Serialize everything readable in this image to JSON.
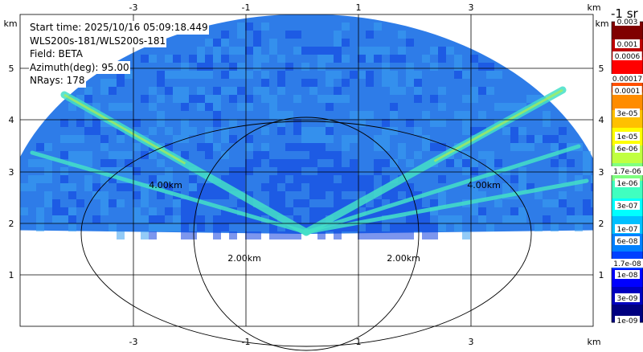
{
  "info": {
    "start_time": "Start time: 2025/10/16 05:09:18.449",
    "source": "WLS200s-181/WLS200s-181",
    "field": "Field: BETA",
    "azimuth": "Azimuth(deg): 95.00",
    "nrays": "NRays: 178"
  },
  "axes": {
    "unit": "km",
    "x_ticks": [
      "-3",
      "-1",
      "1",
      "3"
    ],
    "y_ticks": [
      "5",
      "4",
      "3",
      "2",
      "1"
    ],
    "range_labels": [
      "4.00km",
      "4.00km",
      "2.00km",
      "2.00km"
    ]
  },
  "colorbar": {
    "title": "-1 sr",
    "labels": [
      "0.003",
      "0.001",
      "0.0006",
      "0.00017",
      "0.0001",
      "3e-05",
      "1e-05",
      "6e-06",
      "1.7e-06",
      "1e-06",
      "3e-07",
      "1e-07",
      "6e-08",
      "1.7e-08",
      "1e-08",
      "3e-09",
      "1e-09"
    ],
    "colors": [
      "#800000",
      "#c00000",
      "#ff0000",
      "#ff5000",
      "#ff8c00",
      "#ffc000",
      "#ffff00",
      "#c0ff40",
      "#80ff80",
      "#40ffc0",
      "#00ffff",
      "#00c0ff",
      "#0080ff",
      "#0040ff",
      "#0000ff",
      "#0000c0",
      "#000080"
    ]
  },
  "colors": {
    "field_base": "#2e7ce8",
    "field_light": "#3aa0f0",
    "field_dark": "#1040e0",
    "streak": "#44e0c8",
    "streak_hi": "#b0f050"
  }
}
